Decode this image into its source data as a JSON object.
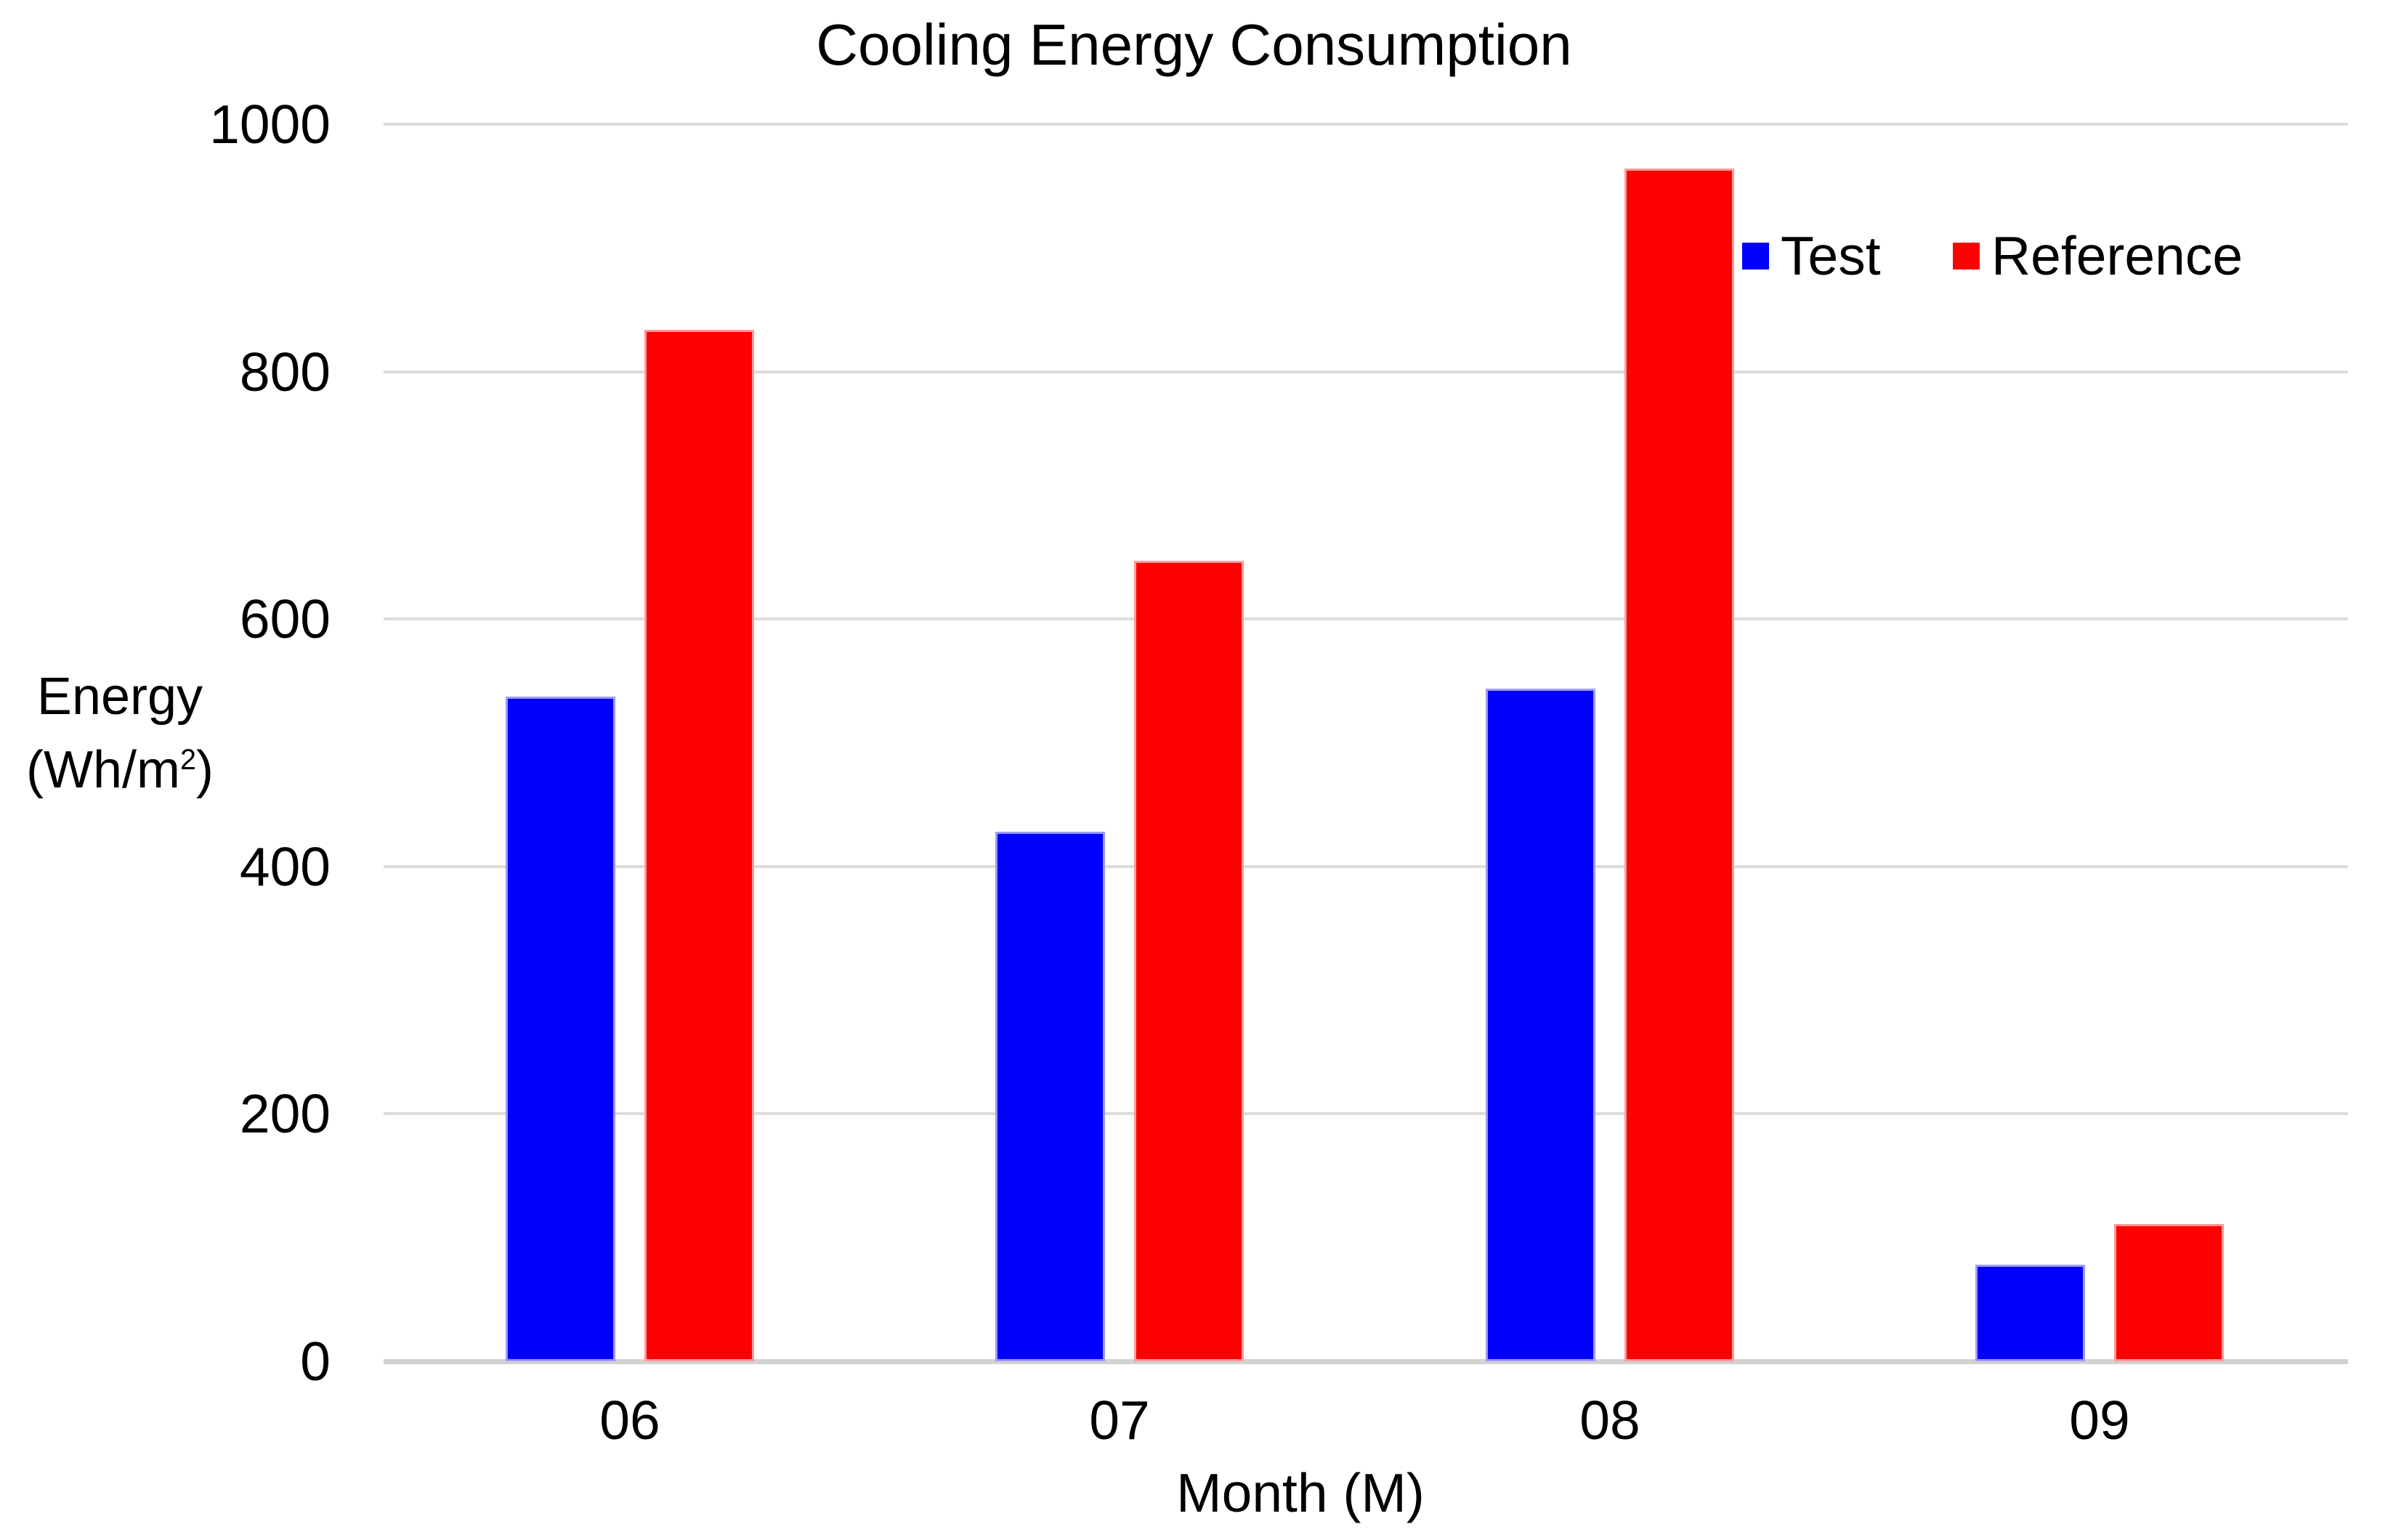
{
  "title": "Cooling Energy Consumption",
  "y_axis": {
    "label_line1": "Energy",
    "label_line2_pre": "(Wh/m",
    "label_sup": "2",
    "label_line2_post": ")",
    "tick_labels": [
      "0",
      "200",
      "400",
      "600",
      "800",
      "1000"
    ]
  },
  "x_axis": {
    "label": "Month (M)",
    "tick_labels": [
      "06",
      "07",
      "08",
      "09"
    ]
  },
  "legend": [
    {
      "name": "Test",
      "color": "#0000ff"
    },
    {
      "name": "Reference",
      "color": "#ff0000"
    }
  ],
  "colors": {
    "test_fill": "#0000ff",
    "test_edge": "#9a9aff",
    "reference_fill": "#ff0000",
    "reference_edge": "#ff9a9a",
    "gridline": "#dcdcdc",
    "text": "#000000"
  },
  "chart_data": {
    "type": "bar",
    "categories": [
      "06",
      "07",
      "08",
      "09"
    ],
    "series": [
      {
        "name": "Test",
        "color": "#0000ff",
        "edge_color": "#9a9aff",
        "values": [
          537,
          428,
          544,
          78
        ]
      },
      {
        "name": "Reference",
        "color": "#ff0000",
        "edge_color": "#ff9a9a",
        "values": [
          834,
          647,
          964,
          111
        ]
      }
    ],
    "title": "Cooling Energy Consumption",
    "xlabel": "Month (M)",
    "ylabel": "Energy (Wh/m2)",
    "yticks": [
      0,
      200,
      400,
      600,
      800,
      1000
    ],
    "ylim": [
      0,
      1000
    ],
    "grid": true,
    "legend_position": "inside-top-right",
    "bar_orientation": "vertical"
  }
}
